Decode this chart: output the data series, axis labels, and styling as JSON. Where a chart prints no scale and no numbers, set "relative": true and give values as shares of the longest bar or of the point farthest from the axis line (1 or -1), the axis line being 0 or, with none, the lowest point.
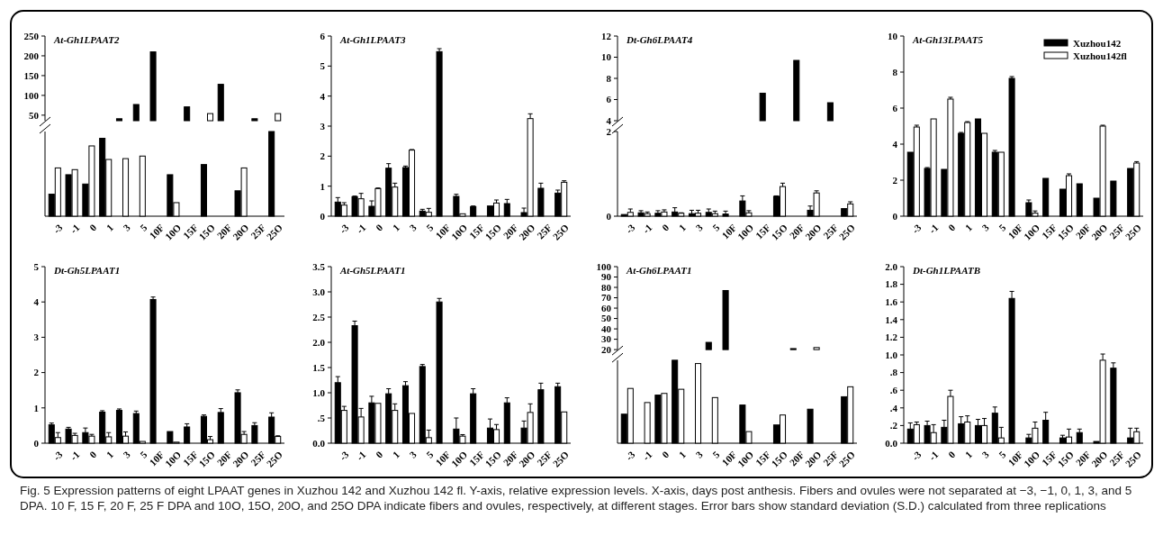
{
  "chart_data": [
    {
      "type": "bar",
      "title": "At-Gh1LPAAT2",
      "categories": [
        "-3",
        "-1",
        "0",
        "1",
        "3",
        "5",
        "10F",
        "10O",
        "15F",
        "15O",
        "20F",
        "20O",
        "25F",
        "25O"
      ],
      "tick_labels": "y",
      "ylim": [
        36,
        250
      ],
      "yticks": [
        50,
        100,
        150,
        200,
        250
      ],
      "series": [
        {
          "color": "#000000",
          "values": [
            null,
            null,
            null,
            null,
            41,
            77,
            210,
            null,
            71,
            null,
            128,
            null,
            41,
            null
          ]
        },
        {
          "color": "#ffffff",
          "values": [
            null,
            null,
            null,
            null,
            null,
            null,
            null,
            null,
            null,
            54,
            null,
            null,
            null,
            54
          ]
        }
      ],
      "annotations": [
        "Fig. 5 Expression patterns of eight LPAAT genes in Xuzhou 142 and Xuzhou 142 fl. Y-axis, relative expression levels. X-axis, days post anthesis. Fibers and ovules were not separated at −3, −1, 0, 1, 3, and 5 DPA. 10 F, 15 F, 20 F, 25 F DPA and 10O, 15O, 20O, and 25O DPA indicate fibers and ovules, respectively, at different stages. Error bars show standard deviation (S.D.) calculated from three replications"
      ]
    },
    {
      "type": "bar",
      "categories": [
        "-3",
        "-1",
        "0",
        "1",
        "3",
        "5",
        "10F",
        "10O",
        "15F",
        "15O",
        "20F",
        "20O",
        "25F",
        "25O"
      ],
      "relative": true,
      "tick_labels": "x",
      "series": [
        {
          "color": "#000000",
          "values": [
            0.26,
            0.49,
            0.38,
            0.92,
            null,
            null,
            null,
            0.49,
            null,
            0.61,
            null,
            0.3,
            null,
            1
          ]
        },
        {
          "color": "#ffffff",
          "values": [
            0.57,
            0.55,
            0.83,
            0.67,
            0.68,
            0.71,
            null,
            0.16,
            null,
            null,
            null,
            0.57,
            null,
            null
          ]
        }
      ]
    },
    {
      "type": "bar",
      "title": "At-Gh1LPAAT3",
      "categories": [
        "-3",
        "-1",
        "0",
        "1",
        "3",
        "5",
        "10F",
        "10O",
        "15F",
        "15O",
        "20F",
        "20O",
        "25F",
        "25O"
      ],
      "ylim": [
        0,
        6
      ],
      "yticks": [
        0,
        1,
        2,
        3,
        4,
        5,
        6
      ],
      "series": [
        {
          "color": "#000000",
          "values": [
            0.47,
            0.65,
            0.33,
            1.6,
            1.62,
            0.17,
            5.48,
            0.66,
            0.32,
            0.34,
            0.42,
            0.12,
            0.93,
            0.77
          ],
          "errors": [
            0.15,
            0.02,
            0.18,
            0.15,
            0.05,
            0.06,
            0.1,
            0.07,
            0.02,
            null,
            0.14,
            0.15,
            0.17,
            0.1
          ]
        },
        {
          "color": "#ffffff",
          "values": [
            0.37,
            0.58,
            0.92,
            0.97,
            2.2,
            0.13,
            null,
            0.08,
            null,
            0.44,
            null,
            3.25,
            null,
            1.13
          ],
          "errors": [
            0.08,
            0.18,
            0.02,
            0.13,
            0.02,
            0.13,
            null,
            null,
            null,
            0.1,
            null,
            0.16,
            null,
            0.05
          ]
        }
      ]
    },
    {
      "type": "bar",
      "title": "Dt-Gh6LPAAT4",
      "categories": [
        "-3",
        "-1",
        "0",
        "1",
        "3",
        "5",
        "10F",
        "10O",
        "15F",
        "15O",
        "20F",
        "20O",
        "25F",
        "25O"
      ],
      "tick_labels": "y",
      "ylim": [
        4,
        12
      ],
      "yticks": [
        4,
        6,
        8,
        10,
        12
      ],
      "series": [
        {
          "color": "#000000",
          "values": [
            null,
            null,
            null,
            null,
            null,
            null,
            null,
            null,
            6.6,
            null,
            9.7,
            null,
            5.7,
            null
          ]
        }
      ]
    },
    {
      "type": "bar",
      "categories": [
        "-3",
        "-1",
        "0",
        "1",
        "3",
        "5",
        "10F",
        "10O",
        "15F",
        "15O",
        "20F",
        "20O",
        "25F",
        "25O"
      ],
      "ylim": [
        0,
        2
      ],
      "yticks": [
        0,
        2
      ],
      "series": [
        {
          "color": "#000000",
          "values": [
            0.04,
            0.08,
            0.07,
            0.1,
            0.06,
            0.09,
            0.05,
            0.36,
            null,
            0.47,
            null,
            0.14,
            null,
            0.18
          ],
          "errors": [
            null,
            0.05,
            0.06,
            0.1,
            0.08,
            0.08,
            0.07,
            0.12,
            null,
            0.01,
            null,
            0.1,
            null,
            null
          ]
        },
        {
          "color": "#ffffff",
          "values": [
            0.09,
            0.06,
            0.1,
            0.07,
            0.07,
            0.06,
            null,
            0.08,
            null,
            0.7,
            null,
            0.55,
            null,
            0.29
          ],
          "errors": [
            0.08,
            0.04,
            0.05,
            0.01,
            0.07,
            0.06,
            null,
            0.05,
            null,
            0.08,
            null,
            0.05,
            null,
            0.05
          ]
        }
      ]
    },
    {
      "type": "bar",
      "title": "At-Gh13LPAAT5",
      "categories": [
        "-3",
        "-1",
        "0",
        "1",
        "3",
        "5",
        "10F",
        "10O",
        "15F",
        "15O",
        "20F",
        "20O",
        "25F",
        "25O"
      ],
      "ylim": [
        0,
        10
      ],
      "yticks": [
        0,
        2,
        4,
        6,
        8,
        10
      ],
      "legend": "top right",
      "series": [
        {
          "name": "Xuzhou142",
          "color": "#000000",
          "values": [
            3.55,
            2.65,
            2.6,
            4.6,
            5.4,
            3.55,
            7.65,
            0.75,
            2.1,
            1.5,
            1.8,
            1.0,
            1.95,
            2.65
          ],
          "errors": [
            null,
            0.05,
            null,
            0.05,
            null,
            0.1,
            0.1,
            0.15,
            null,
            null,
            null,
            null,
            null,
            null
          ]
        },
        {
          "name": "Xuzhou142fl",
          "color": "#ffffff",
          "values": [
            4.95,
            5.4,
            6.5,
            5.2,
            4.6,
            3.55,
            null,
            0.17,
            null,
            2.25,
            null,
            5.0,
            null,
            2.95
          ],
          "errors": [
            0.1,
            null,
            0.1,
            0.05,
            null,
            null,
            null,
            0.12,
            null,
            0.1,
            null,
            0.05,
            null,
            0.08
          ]
        }
      ]
    },
    {
      "type": "bar",
      "title": "Dt-Gh5LPAAT1",
      "categories": [
        "-3",
        "-1",
        "0",
        "1",
        "3",
        "5",
        "10F",
        "10O",
        "15F",
        "15O",
        "20F",
        "20O",
        "25F",
        "25O"
      ],
      "ylim": [
        0,
        5
      ],
      "yticks": [
        0,
        1,
        2,
        3,
        4,
        5
      ],
      "series": [
        {
          "color": "#000000",
          "values": [
            0.52,
            0.4,
            0.3,
            0.88,
            0.93,
            0.84,
            4.07,
            0.33,
            0.46,
            0.76,
            0.87,
            1.43,
            0.5,
            0.74
          ],
          "errors": [
            0.05,
            0.05,
            0.13,
            0.04,
            0.04,
            0.07,
            0.07,
            null,
            0.09,
            0.04,
            0.11,
            0.08,
            0.08,
            0.12
          ]
        },
        {
          "color": "#ffffff",
          "values": [
            0.16,
            0.22,
            0.2,
            0.18,
            0.2,
            0.05,
            null,
            0.03,
            null,
            0.1,
            null,
            0.25,
            null,
            0.19
          ],
          "errors": [
            0.14,
            0.06,
            0.05,
            0.12,
            0.12,
            null,
            null,
            null,
            null,
            0.09,
            null,
            0.08,
            null,
            0.02
          ]
        }
      ]
    },
    {
      "type": "bar",
      "title": "At-Gh5LPAAT1",
      "categories": [
        "-3",
        "-1",
        "0",
        "1",
        "3",
        "5",
        "10F",
        "10O",
        "15F",
        "15O",
        "20F",
        "20O",
        "25F",
        "25O"
      ],
      "ylim": [
        0,
        3.5
      ],
      "yticks": [
        {
          "value": 0,
          "label": "0.0"
        },
        {
          "value": 0.5,
          "label": ".5"
        },
        {
          "value": 1,
          "label": "1.0"
        },
        {
          "value": 1.5,
          "label": "1.5"
        },
        {
          "value": 2,
          "label": "2.0"
        },
        {
          "value": 2.5,
          "label": "2.5"
        },
        {
          "value": 3,
          "label": "3.0"
        },
        {
          "value": 3.5,
          "label": "3.5"
        }
      ],
      "series": [
        {
          "color": "#000000",
          "values": [
            1.2,
            2.33,
            0.8,
            0.98,
            1.14,
            1.52,
            2.8,
            0.28,
            0.98,
            0.3,
            0.8,
            0.3,
            1.06,
            1.12
          ],
          "errors": [
            0.12,
            0.09,
            0.13,
            0.1,
            0.08,
            0.04,
            0.07,
            0.22,
            0.1,
            0.18,
            0.1,
            0.14,
            0.13,
            0.07
          ]
        },
        {
          "color": "#ffffff",
          "values": [
            0.65,
            0.52,
            0.79,
            0.65,
            0.59,
            0.11,
            null,
            0.14,
            null,
            0.27,
            null,
            0.61,
            null,
            0.62
          ],
          "errors": [
            0.08,
            0.17,
            null,
            0.13,
            null,
            0.15,
            null,
            0.03,
            null,
            0.1,
            null,
            0.17,
            null,
            null
          ]
        }
      ]
    },
    {
      "type": "bar",
      "title": "At-Gh6LPAAT1",
      "categories": [
        "-3",
        "-1",
        "0",
        "1",
        "3",
        "5",
        "10F",
        "10O",
        "15F",
        "15O",
        "20F",
        "20O",
        "25F",
        "25O"
      ],
      "tick_labels": "y",
      "ylim": [
        20,
        100
      ],
      "yticks": [
        20,
        30,
        40,
        50,
        60,
        70,
        80,
        90,
        100
      ],
      "series": [
        {
          "color": "#000000",
          "values": [
            null,
            null,
            null,
            null,
            null,
            27,
            77,
            null,
            null,
            null,
            21,
            null,
            null,
            null
          ]
        },
        {
          "color": "#ffffff",
          "values": [
            null,
            null,
            null,
            null,
            null,
            null,
            null,
            null,
            null,
            null,
            null,
            22,
            null,
            null
          ]
        }
      ]
    },
    {
      "type": "bar",
      "categories": [
        "-3",
        "-1",
        "0",
        "1",
        "3",
        "5",
        "10F",
        "10O",
        "15F",
        "15O",
        "20F",
        "20O",
        "25F",
        "25O"
      ],
      "relative": true,
      "tick_labels": "x",
      "series": [
        {
          "color": "#000000",
          "values": [
            0.35,
            null,
            0.58,
            1,
            null,
            null,
            null,
            0.46,
            null,
            0.22,
            null,
            0.41,
            null,
            0.56
          ]
        },
        {
          "color": "#ffffff",
          "values": [
            0.66,
            0.49,
            0.6,
            0.65,
            0.96,
            0.55,
            null,
            0.14,
            null,
            0.34,
            null,
            null,
            null,
            0.68
          ]
        }
      ]
    },
    {
      "type": "bar",
      "title": "Dt-Gh1LPAATB",
      "categories": [
        "-3",
        "-1",
        "0",
        "1",
        "3",
        "5",
        "10F",
        "10O",
        "15F",
        "15O",
        "20F",
        "20O",
        "25F",
        "25O"
      ],
      "ylim": [
        0,
        2
      ],
      "yticks": [
        {
          "value": 0,
          "label": "0.0"
        },
        {
          "value": 0.2,
          "label": ".2"
        },
        {
          "value": 0.4,
          "label": ".4"
        },
        {
          "value": 0.6,
          "label": ".6"
        },
        {
          "value": 0.8,
          "label": ".8"
        },
        {
          "value": 1,
          "label": "1.0"
        },
        {
          "value": 1.2,
          "label": "1.2"
        },
        {
          "value": 1.4,
          "label": "1.4"
        },
        {
          "value": 1.6,
          "label": "1.6"
        },
        {
          "value": 1.8,
          "label": "1.8"
        },
        {
          "value": 2,
          "label": "2.0"
        }
      ],
      "series": [
        {
          "color": "#000000",
          "values": [
            0.16,
            0.2,
            0.18,
            0.22,
            0.2,
            0.34,
            1.64,
            0.06,
            0.26,
            0.06,
            0.12,
            0.02,
            0.85,
            0.06
          ],
          "errors": [
            0.07,
            0.05,
            0.08,
            0.08,
            0.07,
            0.07,
            0.08,
            0.04,
            0.09,
            0.03,
            0.04,
            null,
            0.06,
            0.11
          ]
        },
        {
          "color": "#ffffff",
          "values": [
            0.21,
            0.12,
            0.53,
            0.24,
            0.2,
            0.06,
            null,
            0.17,
            null,
            0.07,
            null,
            0.94,
            null,
            0.13
          ],
          "errors": [
            0.03,
            0.09,
            0.07,
            0.07,
            0.08,
            0.12,
            null,
            0.07,
            null,
            0.09,
            null,
            0.07,
            null,
            0.04
          ]
        }
      ]
    }
  ]
}
